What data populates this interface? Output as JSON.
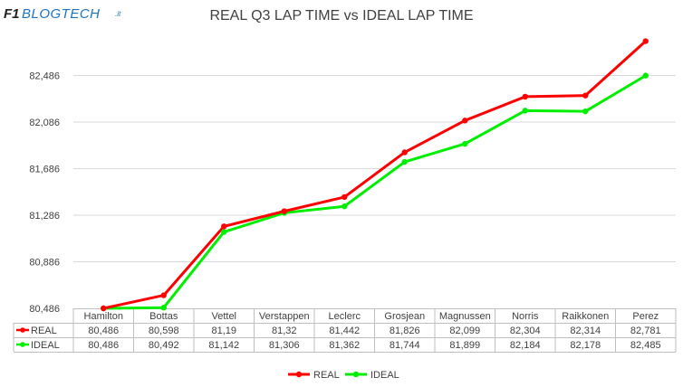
{
  "logo": {
    "text_f1": "F1",
    "text_blogtech": "BLOGTECH",
    "text_it": ".it"
  },
  "chart_data": {
    "type": "line",
    "title": "REAL Q3 LAP TIME vs IDEAL LAP TIME",
    "categories": [
      "Hamilton",
      "Bottas",
      "Vettel",
      "Verstappen",
      "Leclerc",
      "Grosjean",
      "Magnussen",
      "Norris",
      "Raikkonen",
      "Perez"
    ],
    "series": [
      {
        "name": "REAL",
        "color": "#ff0000",
        "values": [
          80.486,
          80.598,
          81.19,
          81.32,
          81.442,
          81.826,
          82.099,
          82.304,
          82.314,
          82.781
        ],
        "labels": [
          "80,486",
          "80,598",
          "81,19",
          "81,32",
          "81,442",
          "81,826",
          "82,099",
          "82,304",
          "82,314",
          "82,781"
        ]
      },
      {
        "name": "IDEAL",
        "color": "#00ee00",
        "values": [
          80.486,
          80.492,
          81.142,
          81.306,
          81.362,
          81.744,
          81.899,
          82.184,
          82.178,
          82.485
        ],
        "labels": [
          "80,486",
          "80,492",
          "81,142",
          "81,306",
          "81,362",
          "81,744",
          "81,899",
          "82,184",
          "82,178",
          "82,485"
        ]
      }
    ],
    "yticks": [
      80.486,
      80.886,
      81.286,
      81.686,
      82.086,
      82.486
    ],
    "ytick_labels": [
      "80,486",
      "80,886",
      "81,286",
      "81,686",
      "82,086",
      "82,486"
    ],
    "ylim": [
      80.486,
      82.886
    ],
    "grid": true,
    "legend_position": "bottom",
    "data_table": true
  }
}
